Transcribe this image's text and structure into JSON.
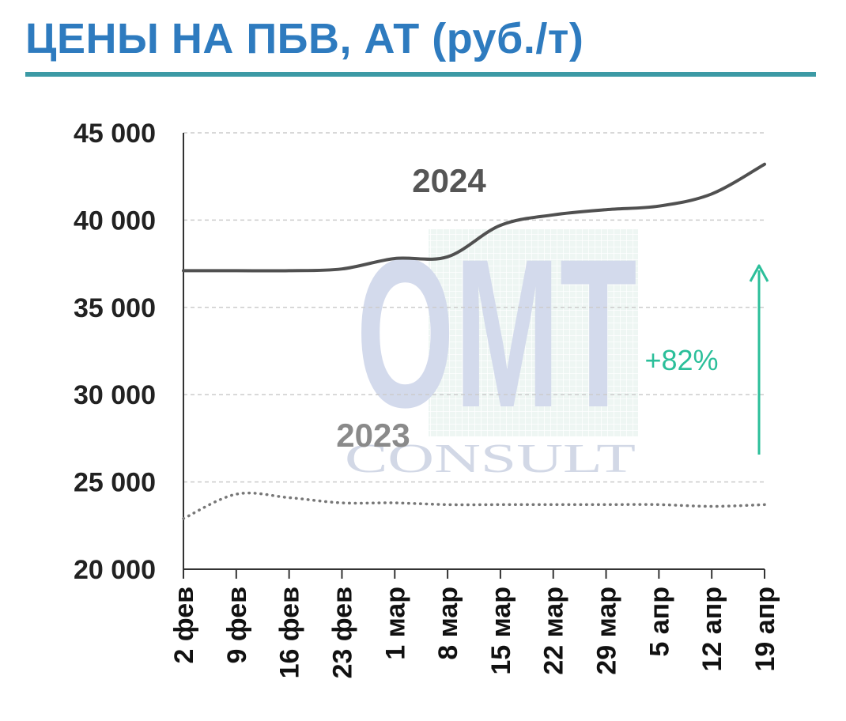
{
  "title": "ЦЕНЫ НА ПБВ, АТ (руб./т)",
  "watermark": {
    "main": "OMT",
    "sub": "CONSULT"
  },
  "colors": {
    "title": "#2e7bbf",
    "rule": "#3c9aa5",
    "line_2024": "#505050",
    "line_2023": "#777777",
    "label_2024": "#555555",
    "label_2023": "#8a8a8a",
    "annotation": "#2bbf9a",
    "grid": "#cccccc"
  },
  "chart_data": {
    "type": "line",
    "x": [
      "2 фев",
      "9 фев",
      "16 фев",
      "23 фев",
      "1 мар",
      "8 мар",
      "15 мар",
      "22 мар",
      "29 мар",
      "5 апр",
      "12 апр",
      "19 апр"
    ],
    "ylim": [
      20000,
      45000
    ],
    "yticks": [
      20000,
      25000,
      30000,
      35000,
      40000,
      45000
    ],
    "ytick_labels": [
      "20 000",
      "25 000",
      "30 000",
      "35 000",
      "40 000",
      "45 000"
    ],
    "grid": true,
    "series": [
      {
        "name": "2024",
        "style": "solid",
        "values": [
          37100,
          37100,
          37100,
          37200,
          37800,
          37900,
          39700,
          40300,
          40600,
          40800,
          41500,
          43200
        ]
      },
      {
        "name": "2023",
        "style": "dotted",
        "values": [
          22900,
          24300,
          24100,
          23800,
          23800,
          23700,
          23700,
          23700,
          23700,
          23700,
          23600,
          23700
        ]
      }
    ],
    "annotation": {
      "text": "+82%",
      "arrow": "up"
    }
  }
}
